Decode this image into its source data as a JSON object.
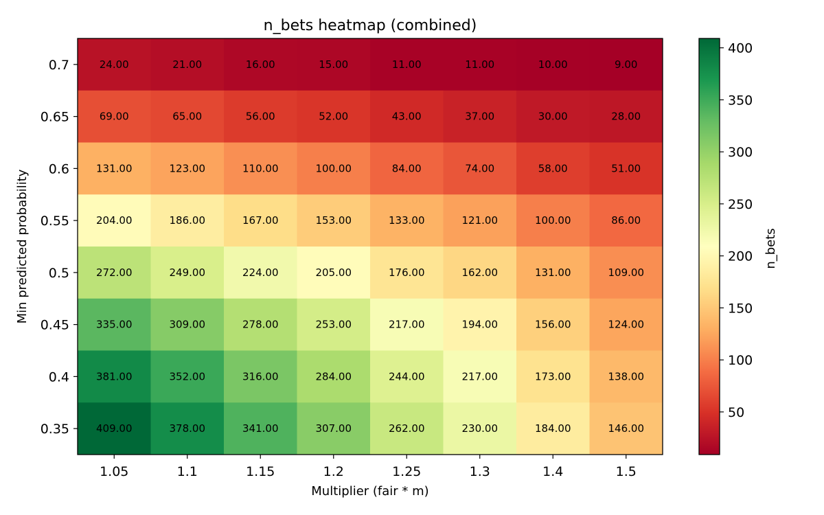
{
  "chart_data": {
    "type": "heatmap",
    "title": "n_bets heatmap (combined)",
    "xlabel": "Multiplier (fair * m)",
    "ylabel": "Min predicted probability",
    "x_categories": [
      "1.05",
      "1.1",
      "1.15",
      "1.2",
      "1.25",
      "1.3",
      "1.4",
      "1.5"
    ],
    "y_categories": [
      "0.7",
      "0.65",
      "0.6",
      "0.55",
      "0.5",
      "0.45",
      "0.4",
      "0.35"
    ],
    "values": [
      [
        24,
        21,
        16,
        15,
        11,
        11,
        10,
        9
      ],
      [
        69,
        65,
        56,
        52,
        43,
        37,
        30,
        28
      ],
      [
        131,
        123,
        110,
        100,
        84,
        74,
        58,
        51
      ],
      [
        204,
        186,
        167,
        153,
        133,
        121,
        100,
        86
      ],
      [
        272,
        249,
        224,
        205,
        176,
        162,
        131,
        109
      ],
      [
        335,
        309,
        278,
        253,
        217,
        194,
        156,
        124
      ],
      [
        381,
        352,
        316,
        284,
        244,
        217,
        173,
        138
      ],
      [
        409,
        378,
        341,
        307,
        262,
        230,
        184,
        146
      ]
    ],
    "value_format_decimals": 2,
    "colorbar": {
      "label": "n_bets",
      "ticks": [
        50,
        100,
        150,
        200,
        250,
        300,
        350,
        400
      ],
      "range": [
        9,
        409
      ],
      "colormap": "RdYlGn"
    }
  }
}
